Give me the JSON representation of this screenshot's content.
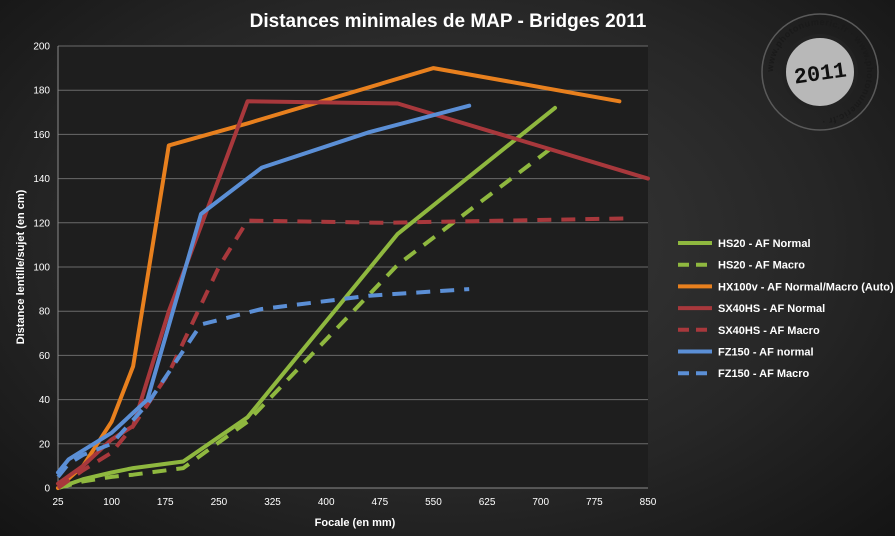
{
  "chart_data": {
    "type": "line",
    "title": "Distances minimales de MAP - Bridges 2011",
    "xlabel": "Focale (en mm)",
    "ylabel": "Distance lentille/sujet (en cm)",
    "xlim": [
      25,
      850
    ],
    "ylim": [
      0,
      200
    ],
    "xticks": [
      25,
      100,
      175,
      250,
      325,
      400,
      475,
      550,
      625,
      700,
      775,
      850
    ],
    "yticks": [
      0,
      20,
      40,
      60,
      80,
      100,
      120,
      140,
      160,
      180,
      200
    ],
    "grid": true,
    "legend_position": "right",
    "series": [
      {
        "name": "HS20 - AF Normal",
        "color": "#8fb83f",
        "dash": false,
        "points": [
          [
            25,
            0
          ],
          [
            60,
            4
          ],
          [
            100,
            7
          ],
          [
            130,
            9
          ],
          [
            200,
            12
          ],
          [
            290,
            32
          ],
          [
            500,
            115
          ],
          [
            720,
            172
          ]
        ]
      },
      {
        "name": "HS20 - AF Macro",
        "color": "#8fb83f",
        "dash": true,
        "points": [
          [
            25,
            0
          ],
          [
            60,
            3
          ],
          [
            100,
            5
          ],
          [
            130,
            6
          ],
          [
            200,
            9
          ],
          [
            290,
            30
          ],
          [
            500,
            101
          ],
          [
            720,
            155
          ]
        ]
      },
      {
        "name": "HX100v - AF Normal/Macro (Auto)",
        "color": "#e8801e",
        "dash": false,
        "points": [
          [
            25,
            0
          ],
          [
            60,
            10
          ],
          [
            100,
            30
          ],
          [
            130,
            55
          ],
          [
            180,
            155
          ],
          [
            290,
            165
          ],
          [
            550,
            190
          ],
          [
            810,
            175
          ]
        ]
      },
      {
        "name": "SX40HS - AF Normal",
        "color": "#a8383c",
        "dash": false,
        "points": [
          [
            25,
            2
          ],
          [
            60,
            10
          ],
          [
            100,
            22
          ],
          [
            130,
            28
          ],
          [
            180,
            80
          ],
          [
            250,
            140
          ],
          [
            290,
            175
          ],
          [
            500,
            174
          ],
          [
            850,
            140
          ]
        ]
      },
      {
        "name": "SX40HS - AF Macro",
        "color": "#a8383c",
        "dash": true,
        "points": [
          [
            25,
            0
          ],
          [
            60,
            8
          ],
          [
            100,
            16
          ],
          [
            130,
            28
          ],
          [
            180,
            52
          ],
          [
            250,
            100
          ],
          [
            290,
            121
          ],
          [
            480,
            120
          ],
          [
            820,
            122
          ]
        ]
      },
      {
        "name": "FZ150 - AF normal",
        "color": "#5b8fd6",
        "dash": false,
        "points": [
          [
            25,
            7
          ],
          [
            40,
            13
          ],
          [
            60,
            17
          ],
          [
            100,
            25
          ],
          [
            150,
            40
          ],
          [
            225,
            124
          ],
          [
            310,
            145
          ],
          [
            460,
            161
          ],
          [
            600,
            173
          ]
        ]
      },
      {
        "name": "FZ150 - AF Macro",
        "color": "#5b8fd6",
        "dash": true,
        "points": [
          [
            25,
            5
          ],
          [
            40,
            11
          ],
          [
            60,
            15
          ],
          [
            100,
            20
          ],
          [
            150,
            38
          ],
          [
            225,
            74
          ],
          [
            310,
            81
          ],
          [
            460,
            87
          ],
          [
            600,
            90
          ]
        ]
      }
    ]
  },
  "watermark": {
    "ring_text": "www.photonumeric.fr · www.photonumeric.fr ·",
    "year": "2011"
  }
}
